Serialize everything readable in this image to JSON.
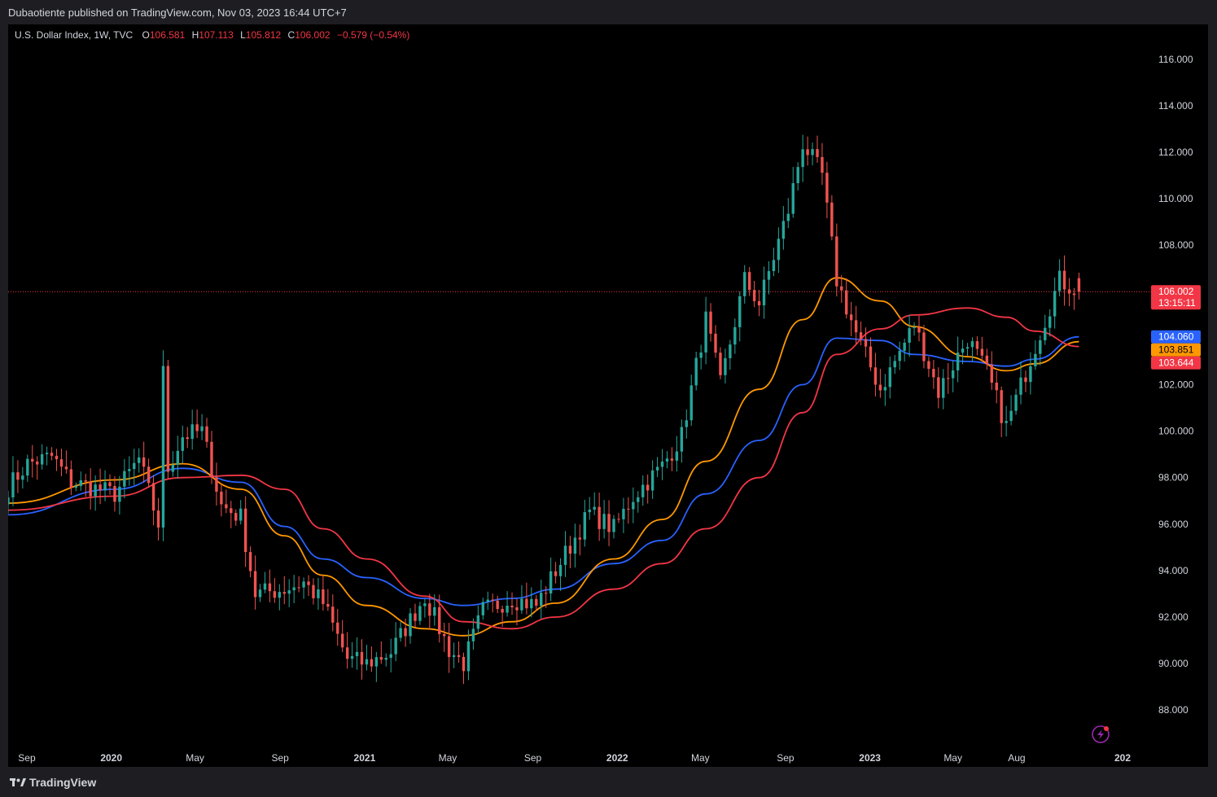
{
  "header": {
    "published": "Dubaotiente published on TradingView.com, Nov 03, 2023 16:44 UTC+7"
  },
  "legend": {
    "symbol": "U.S. Dollar Index, 1W, TVC",
    "o_label": "O",
    "o_value": "106.581",
    "h_label": "H",
    "h_value": "107.113",
    "l_label": "L",
    "l_value": "105.812",
    "c_label": "C",
    "c_value": "106.002",
    "change": "−0.579 (−0.54%)"
  },
  "footer": {
    "brand": "TradingView"
  },
  "colors": {
    "up": "#26a69a",
    "down": "#ef5350",
    "ma_blue": "#2962ff",
    "ma_orange": "#ff9800",
    "ma_red": "#f23645",
    "background": "#000000",
    "axis_text": "#d1d4dc"
  },
  "chart_data": {
    "type": "candlestick",
    "ylim": [
      86.5,
      117.5
    ],
    "yticks": [
      "116.000",
      "114.000",
      "112.000",
      "110.000",
      "108.000",
      "106.000",
      "104.000",
      "102.000",
      "100.000",
      "98.000",
      "96.000",
      "94.000",
      "92.000",
      "90.000",
      "88.000"
    ],
    "xticks": [
      {
        "label": "Sep",
        "date": "2019-09"
      },
      {
        "label": "2020",
        "date": "2020-01"
      },
      {
        "label": "May",
        "date": "2020-05"
      },
      {
        "label": "Sep",
        "date": "2020-09"
      },
      {
        "label": "2021",
        "date": "2021-01"
      },
      {
        "label": "May",
        "date": "2021-05"
      },
      {
        "label": "Sep",
        "date": "2021-09"
      },
      {
        "label": "2022",
        "date": "2022-01"
      },
      {
        "label": "May",
        "date": "2022-05"
      },
      {
        "label": "Sep",
        "date": "2022-09"
      },
      {
        "label": "2023",
        "date": "2023-01"
      },
      {
        "label": "May",
        "date": "2023-05"
      },
      {
        "label": "Aug",
        "date": "2023-08"
      },
      {
        "label": "202",
        "date": "2024-01"
      }
    ],
    "last_price": {
      "value": "106.002",
      "countdown": "13:15:11"
    },
    "ma_labels": [
      {
        "name": "blue",
        "value": "104.060",
        "color": "#2962ff"
      },
      {
        "name": "orange",
        "value": "103.851",
        "color": "#ff9800"
      },
      {
        "name": "red",
        "value": "103.644",
        "color": "#f23645"
      }
    ],
    "close_anchors": [
      [
        "2019-08-05",
        97.6
      ],
      [
        "2019-09-02",
        98.6
      ],
      [
        "2019-10-07",
        98.9
      ],
      [
        "2019-11-04",
        97.8
      ],
      [
        "2019-12-02",
        97.6
      ],
      [
        "2020-01-06",
        97.3
      ],
      [
        "2020-02-10",
        98.8
      ],
      [
        "2020-03-09",
        96.0
      ],
      [
        "2020-03-16",
        102.5
      ],
      [
        "2020-03-23",
        98.4
      ],
      [
        "2020-04-13",
        99.8
      ],
      [
        "2020-05-11",
        100.0
      ],
      [
        "2020-06-08",
        96.8
      ],
      [
        "2020-07-06",
        96.3
      ],
      [
        "2020-07-27",
        93.0
      ],
      [
        "2020-09-07",
        93.2
      ],
      [
        "2020-10-05",
        93.5
      ],
      [
        "2020-11-02",
        92.6
      ],
      [
        "2020-12-07",
        90.2
      ],
      [
        "2021-01-04",
        90.0
      ],
      [
        "2021-02-08",
        90.5
      ],
      [
        "2021-03-29",
        92.9
      ],
      [
        "2021-05-03",
        90.6
      ],
      [
        "2021-05-24",
        90.0
      ],
      [
        "2021-06-21",
        92.3
      ],
      [
        "2021-08-02",
        92.8
      ],
      [
        "2021-09-06",
        92.5
      ],
      [
        "2021-10-04",
        94.0
      ],
      [
        "2021-11-22",
        96.5
      ],
      [
        "2021-12-27",
        95.8
      ],
      [
        "2022-01-24",
        97.2
      ],
      [
        "2022-03-07",
        98.5
      ],
      [
        "2022-04-04",
        99.8
      ],
      [
        "2022-05-09",
        104.8
      ],
      [
        "2022-05-30",
        102.0
      ],
      [
        "2022-07-04",
        106.5
      ],
      [
        "2022-07-25",
        105.5
      ],
      [
        "2022-09-05",
        109.5
      ],
      [
        "2022-09-26",
        112.4
      ],
      [
        "2022-10-24",
        111.0
      ],
      [
        "2022-11-14",
        106.5
      ],
      [
        "2022-12-12",
        104.2
      ],
      [
        "2023-01-16",
        101.8
      ],
      [
        "2023-03-06",
        104.6
      ],
      [
        "2023-04-10",
        101.7
      ],
      [
        "2023-05-22",
        104.0
      ],
      [
        "2023-06-19",
        102.5
      ],
      [
        "2023-07-17",
        100.2
      ],
      [
        "2023-08-28",
        103.7
      ],
      [
        "2023-10-02",
        106.5
      ],
      [
        "2023-10-30",
        106.0
      ]
    ],
    "moving_averages": [
      {
        "name": "blue",
        "color": "#2962ff",
        "points": [
          [
            "2019-08-05",
            96.4
          ],
          [
            "2020-01-06",
            97.5
          ],
          [
            "2020-04-13",
            98.4
          ],
          [
            "2020-07-06",
            97.8
          ],
          [
            "2020-09-07",
            95.9
          ],
          [
            "2020-11-02",
            94.5
          ],
          [
            "2021-01-04",
            93.7
          ],
          [
            "2021-03-29",
            92.8
          ],
          [
            "2021-05-24",
            92.5
          ],
          [
            "2021-08-02",
            92.8
          ],
          [
            "2021-10-04",
            93.2
          ],
          [
            "2021-12-27",
            94.3
          ],
          [
            "2022-03-07",
            95.3
          ],
          [
            "2022-05-09",
            97.3
          ],
          [
            "2022-07-25",
            99.6
          ],
          [
            "2022-09-26",
            102.0
          ],
          [
            "2022-11-14",
            104.0
          ],
          [
            "2023-01-16",
            103.9
          ],
          [
            "2023-03-06",
            103.3
          ],
          [
            "2023-05-22",
            103.0
          ],
          [
            "2023-07-17",
            102.8
          ],
          [
            "2023-08-28",
            103.1
          ],
          [
            "2023-10-30",
            104.06
          ]
        ]
      },
      {
        "name": "orange",
        "color": "#ff9800",
        "points": [
          [
            "2019-08-05",
            96.9
          ],
          [
            "2020-01-06",
            97.9
          ],
          [
            "2020-04-13",
            98.6
          ],
          [
            "2020-07-06",
            97.5
          ],
          [
            "2020-09-07",
            95.5
          ],
          [
            "2020-11-02",
            93.8
          ],
          [
            "2021-01-04",
            92.5
          ],
          [
            "2021-03-29",
            91.5
          ],
          [
            "2021-05-24",
            91.2
          ],
          [
            "2021-08-02",
            91.8
          ],
          [
            "2021-10-04",
            92.6
          ],
          [
            "2021-12-27",
            94.5
          ],
          [
            "2022-03-07",
            96.2
          ],
          [
            "2022-05-09",
            98.7
          ],
          [
            "2022-07-25",
            101.8
          ],
          [
            "2022-09-26",
            104.8
          ],
          [
            "2022-11-14",
            106.6
          ],
          [
            "2023-01-16",
            105.6
          ],
          [
            "2023-03-06",
            104.5
          ],
          [
            "2023-05-22",
            103.2
          ],
          [
            "2023-07-17",
            102.6
          ],
          [
            "2023-08-28",
            102.9
          ],
          [
            "2023-10-30",
            103.851
          ]
        ]
      },
      {
        "name": "red",
        "color": "#f23645",
        "points": [
          [
            "2019-08-05",
            96.6
          ],
          [
            "2020-01-06",
            97.2
          ],
          [
            "2020-04-13",
            98.0
          ],
          [
            "2020-07-06",
            98.1
          ],
          [
            "2020-09-07",
            97.5
          ],
          [
            "2020-11-02",
            95.8
          ],
          [
            "2021-01-04",
            94.5
          ],
          [
            "2021-03-29",
            92.9
          ],
          [
            "2021-05-24",
            91.8
          ],
          [
            "2021-08-02",
            91.5
          ],
          [
            "2021-10-04",
            92.0
          ],
          [
            "2021-12-27",
            93.2
          ],
          [
            "2022-03-07",
            94.3
          ],
          [
            "2022-05-09",
            95.8
          ],
          [
            "2022-07-25",
            98.0
          ],
          [
            "2022-09-26",
            100.8
          ],
          [
            "2022-11-14",
            103.3
          ],
          [
            "2023-01-16",
            104.4
          ],
          [
            "2023-03-06",
            105.0
          ],
          [
            "2023-05-22",
            105.3
          ],
          [
            "2023-07-17",
            104.9
          ],
          [
            "2023-08-28",
            104.3
          ],
          [
            "2023-10-30",
            103.644
          ]
        ]
      }
    ]
  }
}
